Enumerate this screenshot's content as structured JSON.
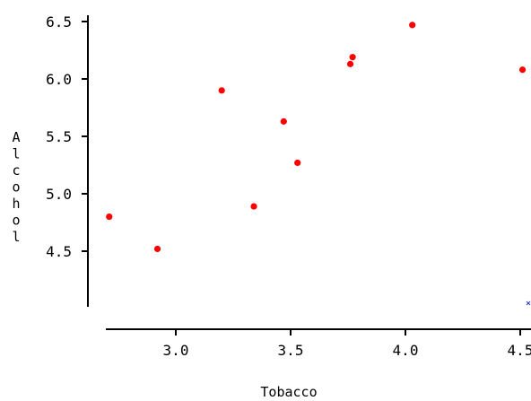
{
  "chart_data": {
    "type": "scatter",
    "title": "",
    "xlabel": "Tobacco",
    "ylabel": "Alcohol",
    "xlim": [
      2.7,
      4.55
    ],
    "ylim": [
      4.0,
      6.5
    ],
    "x_ticks": [
      3.0,
      3.5,
      4.0,
      4.5
    ],
    "x_tick_labels": [
      "3.0",
      "3.5",
      "4.0",
      "4.5"
    ],
    "y_ticks": [
      4.5,
      5.0,
      5.5,
      6.0,
      6.5
    ],
    "y_tick_labels": [
      "4.5",
      "5.0",
      "5.5",
      "6.0",
      "6.5"
    ],
    "grid": false,
    "point_color": "#ff0000",
    "marker_color": "#3333cc",
    "points": [
      {
        "x": 2.71,
        "y": 4.8
      },
      {
        "x": 2.92,
        "y": 4.52
      },
      {
        "x": 3.2,
        "y": 5.9
      },
      {
        "x": 3.34,
        "y": 4.89
      },
      {
        "x": 3.47,
        "y": 5.63
      },
      {
        "x": 3.53,
        "y": 5.27
      },
      {
        "x": 3.76,
        "y": 6.13
      },
      {
        "x": 3.77,
        "y": 6.19
      },
      {
        "x": 4.03,
        "y": 6.47
      },
      {
        "x": 4.51,
        "y": 6.08
      }
    ]
  }
}
